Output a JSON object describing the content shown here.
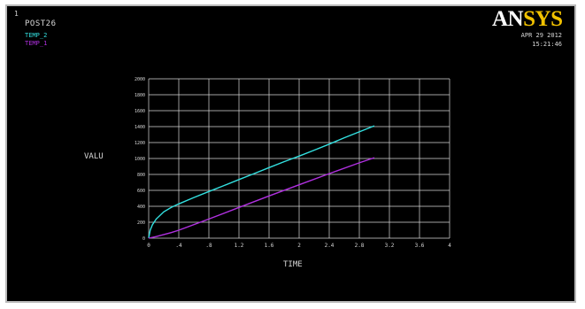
{
  "window": {
    "number": "1",
    "label": "POST26",
    "logo_main": "AN",
    "logo_accent": "SYS",
    "date": "APR 29 2012",
    "time": "15:21:46"
  },
  "colors": {
    "background": "#000000",
    "frame": "#b9b9b9",
    "grid": "#d9d9d9",
    "text": "#d8d8d8",
    "logo_accent": "#f2c200"
  },
  "chart_data": {
    "type": "line",
    "title": "",
    "xlabel": "TIME",
    "ylabel": "VALU",
    "xlim": [
      0,
      4
    ],
    "ylim": [
      0,
      2000
    ],
    "x_ticks": [
      0,
      0.4,
      0.8,
      1.2,
      1.6,
      2,
      2.4,
      2.8,
      3.2,
      3.6,
      4
    ],
    "x_tick_labels": [
      "0",
      ".4",
      ".8",
      "1.2",
      "1.6",
      "2",
      "2.4",
      "2.8",
      "3.2",
      "3.6",
      "4"
    ],
    "y_ticks": [
      0,
      200,
      400,
      600,
      800,
      1000,
      1200,
      1400,
      1600,
      1800,
      2000
    ],
    "y_tick_labels": [
      "0",
      "200",
      "400",
      "600",
      "800",
      "1000",
      "1200",
      "1400",
      "1600",
      "1800",
      "2000"
    ],
    "grid": true,
    "legend_position": "top-left",
    "series": [
      {
        "name": "TEMP_2",
        "color": "#33e0e0",
        "x": [
          0,
          0.02,
          0.05,
          0.1,
          0.2,
          0.3,
          0.4,
          0.6,
          0.8,
          1.0,
          1.2,
          1.4,
          1.6,
          1.8,
          2.0,
          2.2,
          2.4,
          2.6,
          2.8,
          3.0
        ],
        "y": [
          0,
          100,
          170,
          240,
          330,
          385,
          430,
          510,
          585,
          660,
          735,
          810,
          885,
          960,
          1030,
          1105,
          1180,
          1260,
          1335,
          1410
        ]
      },
      {
        "name": "TEMP_1",
        "color": "#b030e0",
        "x": [
          0,
          0.1,
          0.2,
          0.3,
          0.4,
          0.8,
          1.2,
          1.6,
          2.0,
          2.4,
          2.8,
          3.0
        ],
        "y": [
          0,
          20,
          45,
          70,
          100,
          240,
          385,
          530,
          670,
          810,
          945,
          1010
        ]
      }
    ]
  }
}
